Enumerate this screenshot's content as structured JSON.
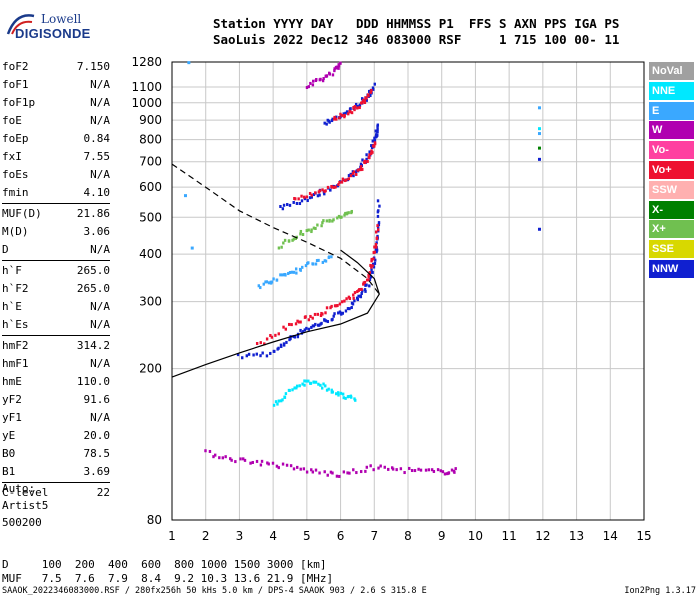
{
  "logo": {
    "line1": "Lowell",
    "line2": "DIGISONDE"
  },
  "header": {
    "line1": "Station YYYY DAY   DDD HHMMSS P1  FFS S AXN PPS IGA PS",
    "line2": "SaoLuis 2022 Dec12 346 083000 RSF     1 715 100 00- 11"
  },
  "params": [
    [
      {
        "name": "foF2",
        "value": "7.150"
      },
      {
        "name": "foF1",
        "value": "N/A"
      },
      {
        "name": "foF1p",
        "value": "N/A"
      },
      {
        "name": "foE",
        "value": "N/A"
      },
      {
        "name": "foEp",
        "value": "0.84"
      },
      {
        "name": "fxI",
        "value": "7.55"
      },
      {
        "name": "foEs",
        "value": "N/A"
      },
      {
        "name": "fmin",
        "value": "4.10"
      }
    ],
    [
      {
        "name": "MUF(D)",
        "value": "21.86"
      },
      {
        "name": "M(D)",
        "value": "3.06"
      },
      {
        "name": "D",
        "value": "N/A"
      }
    ],
    [
      {
        "name": "h`F",
        "value": "265.0"
      },
      {
        "name": "h`F2",
        "value": "265.0"
      },
      {
        "name": "h`E",
        "value": "N/A"
      },
      {
        "name": "h`Es",
        "value": "N/A"
      }
    ],
    [
      {
        "name": "hmF2",
        "value": "314.2"
      },
      {
        "name": "hmF1",
        "value": "N/A"
      },
      {
        "name": "hmE",
        "value": "110.0"
      },
      {
        "name": "yF2",
        "value": "91.6"
      },
      {
        "name": "yF1",
        "value": "N/A"
      },
      {
        "name": "yE",
        "value": "20.0"
      },
      {
        "name": "B0",
        "value": "78.5"
      },
      {
        "name": "B1",
        "value": "3.69"
      }
    ],
    [
      {
        "name": "C-level",
        "value": "22"
      }
    ]
  ],
  "auto": {
    "line1": "Auto:",
    "line2": "Artist5",
    "line3": "500200"
  },
  "bottom": {
    "d_row": "D     100  200  400  600  800 1000 1500 3000 [km]",
    "muf_row": "MUF   7.5  7.6  7.9  8.4  9.2 10.3 13.6 21.9 [MHz]"
  },
  "footer": {
    "left": "SAAOK_2022346083000.RSF / 280fx256h 50 kHs 5.0 km / DPS-4 SAAOK 903 / 2.6 S 315.8 E",
    "right": "Ion2Png 1.3.17"
  },
  "legend": [
    {
      "label": "NoVal",
      "color": "#a0a0a0"
    },
    {
      "label": "NNE",
      "color": "#00e8ff"
    },
    {
      "label": "E",
      "color": "#3aa8ff"
    },
    {
      "label": "W",
      "color": "#b000b0"
    },
    {
      "label": "Vo-",
      "color": "#ff40a0"
    },
    {
      "label": "Vo+",
      "color": "#ee1030"
    },
    {
      "label": "SSW",
      "color": "#ffb0b0"
    },
    {
      "label": "X-",
      "color": "#008000"
    },
    {
      "label": "X+",
      "color": "#70c050"
    },
    {
      "label": "SSE",
      "color": "#d8d800"
    },
    {
      "label": "NNW",
      "color": "#1020d0"
    }
  ],
  "chart_data": {
    "type": "scatter",
    "x_ticks": [
      1,
      2,
      3,
      4,
      5,
      6,
      7,
      8,
      9,
      10,
      11,
      12,
      13,
      14,
      15
    ],
    "y_ticks": [
      80,
      200,
      300,
      400,
      500,
      600,
      700,
      800,
      900,
      1000,
      1100,
      1280
    ],
    "xlim": [
      1,
      15
    ],
    "ylim": [
      80,
      1280
    ],
    "y_scale": "log",
    "grid": true,
    "traces": [
      {
        "color": "#1020d0",
        "points": [
          [
            3.0,
            215
          ],
          [
            4.0,
            220
          ],
          [
            4.5,
            240
          ],
          [
            5.0,
            255
          ],
          [
            5.5,
            265
          ],
          [
            6.0,
            280
          ],
          [
            6.5,
            300
          ],
          [
            6.8,
            330
          ],
          [
            7.0,
            380
          ],
          [
            7.1,
            450
          ],
          [
            7.15,
            560
          ]
        ]
      },
      {
        "color": "#ee1030",
        "points": [
          [
            3.5,
            230
          ],
          [
            4.5,
            260
          ],
          [
            5.2,
            275
          ],
          [
            5.8,
            290
          ],
          [
            6.4,
            310
          ],
          [
            6.8,
            345
          ],
          [
            7.0,
            400
          ],
          [
            7.1,
            480
          ]
        ]
      },
      {
        "color": "#1020d0",
        "points": [
          [
            4.2,
            530
          ],
          [
            5.0,
            560
          ],
          [
            5.6,
            590
          ],
          [
            6.2,
            630
          ],
          [
            6.6,
            680
          ],
          [
            6.9,
            750
          ],
          [
            7.05,
            820
          ],
          [
            7.1,
            870
          ]
        ]
      },
      {
        "color": "#ee1030",
        "points": [
          [
            4.6,
            555
          ],
          [
            5.4,
            585
          ],
          [
            6.0,
            615
          ],
          [
            6.5,
            660
          ],
          [
            6.85,
            720
          ],
          [
            7.05,
            800
          ]
        ]
      },
      {
        "color": "#1020d0",
        "points": [
          [
            5.5,
            880
          ],
          [
            6.0,
            920
          ],
          [
            6.5,
            980
          ],
          [
            6.8,
            1040
          ],
          [
            7.0,
            1110
          ]
        ]
      },
      {
        "color": "#ee1030",
        "points": [
          [
            5.8,
            900
          ],
          [
            6.3,
            950
          ],
          [
            6.7,
            1010
          ],
          [
            6.95,
            1080
          ]
        ]
      },
      {
        "color": "#b000b0",
        "points": [
          [
            5.0,
            1100
          ],
          [
            5.5,
            1160
          ],
          [
            5.9,
            1230
          ],
          [
            6.0,
            1270
          ]
        ]
      },
      {
        "color": "#70c050",
        "points": [
          [
            4.2,
            420
          ],
          [
            4.8,
            450
          ],
          [
            5.4,
            480
          ],
          [
            6.0,
            500
          ],
          [
            6.4,
            520
          ]
        ]
      },
      {
        "color": "#3aa8ff",
        "points": [
          [
            3.6,
            330
          ],
          [
            4.1,
            345
          ],
          [
            4.6,
            360
          ],
          [
            5.2,
            380
          ],
          [
            5.8,
            395
          ]
        ]
      },
      {
        "color": "#b000b0",
        "points": [
          [
            2.0,
            120
          ],
          [
            3.0,
            115
          ],
          [
            4.0,
            112
          ],
          [
            5.0,
            108
          ],
          [
            6.0,
            105
          ],
          [
            7.0,
            110
          ],
          [
            8.0,
            108
          ],
          [
            9.0,
            107
          ],
          [
            9.5,
            108
          ]
        ]
      },
      {
        "color": "#00e8ff",
        "points": [
          [
            4.0,
            160
          ],
          [
            4.5,
            175
          ],
          [
            5.0,
            185
          ],
          [
            5.5,
            180
          ],
          [
            6.0,
            170
          ],
          [
            6.5,
            165
          ]
        ]
      }
    ],
    "profile_solid": [
      [
        1.0,
        190
      ],
      [
        2.0,
        205
      ],
      [
        3.0,
        220
      ],
      [
        4.0,
        235
      ],
      [
        5.0,
        250
      ],
      [
        6.0,
        262
      ],
      [
        6.8,
        280
      ],
      [
        7.15,
        314
      ],
      [
        7.0,
        345
      ],
      [
        6.5,
        380
      ],
      [
        6.0,
        410
      ]
    ],
    "profile_dashed": [
      [
        1.0,
        690
      ],
      [
        2.0,
        600
      ],
      [
        3.0,
        520
      ],
      [
        4.0,
        470
      ],
      [
        5.0,
        430
      ],
      [
        6.0,
        390
      ],
      [
        6.8,
        345
      ],
      [
        7.15,
        314
      ]
    ],
    "isolated_points": [
      [
        11.9,
        970,
        "#3aa8ff"
      ],
      [
        11.9,
        855,
        "#00e8ff"
      ],
      [
        11.9,
        830,
        "#3aa8ff"
      ],
      [
        11.9,
        760,
        "#008000"
      ],
      [
        11.9,
        710,
        "#1020d0"
      ],
      [
        11.9,
        465,
        "#1020d0"
      ],
      [
        1.5,
        1275,
        "#3aa8ff"
      ],
      [
        1.4,
        570,
        "#3aa8ff"
      ],
      [
        1.6,
        415,
        "#3aa8ff"
      ]
    ]
  }
}
